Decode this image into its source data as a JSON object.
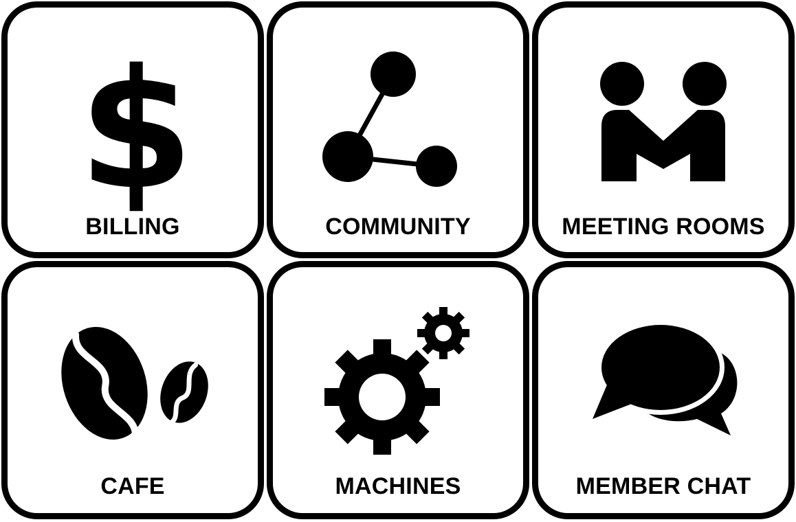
{
  "tiles": [
    {
      "label": "BILLING",
      "icon": "dollar-icon"
    },
    {
      "label": "COMMUNITY",
      "icon": "network-nodes-icon"
    },
    {
      "label": "MEETING ROOMS",
      "icon": "meeting-people-icon"
    },
    {
      "label": "CAFE",
      "icon": "coffee-beans-icon"
    },
    {
      "label": "MACHINES",
      "icon": "gears-icon"
    },
    {
      "label": "MEMBER CHAT",
      "icon": "chat-bubbles-icon"
    }
  ]
}
